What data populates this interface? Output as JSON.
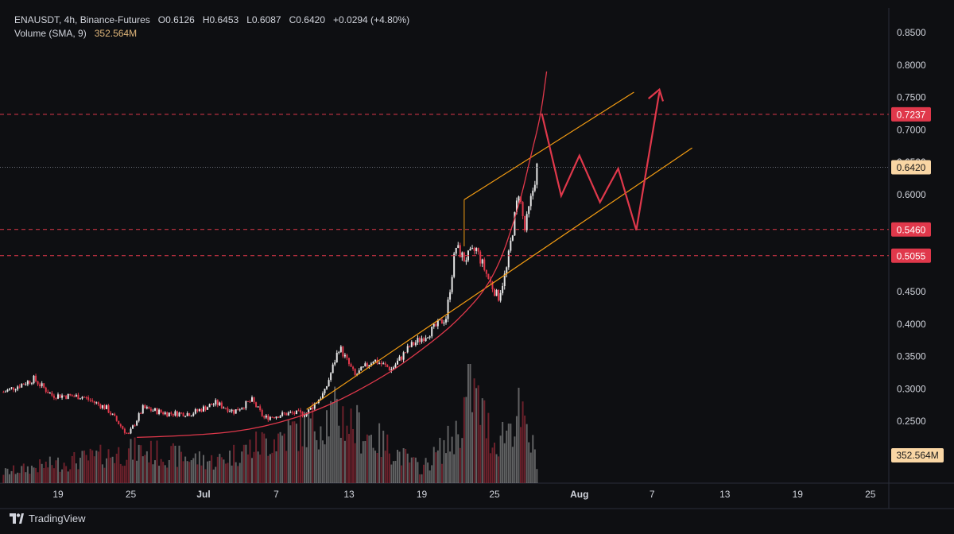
{
  "legend": {
    "title": "ENAUSDT, 4h, Binance-Futures",
    "o": "O0.6126",
    "h": "H0.6453",
    "l": "L0.6087",
    "c": "C0.6420",
    "change": "+0.0294 (+4.80%)",
    "volume_label": "Volume (SMA, 9)",
    "volume_value": "352.564M"
  },
  "footer": {
    "brand": "TradingView"
  },
  "colors": {
    "background": "#0e0f12",
    "up": "#e6e6e6",
    "down": "#e0384b",
    "channel": "#f39c12",
    "curve": "#e0384b",
    "level": "#e0384b",
    "price_label": "#f9d6a4"
  },
  "chart_data": {
    "type": "candlestick",
    "symbol": "ENAUSDT",
    "timeframe": "4h",
    "exchange": "Binance-Futures",
    "y_range": [
      0.215,
      0.875
    ],
    "y_ticks": [
      "0.8500",
      "0.8000",
      "0.7500",
      "0.7000",
      "0.6500",
      "0.6000",
      "0.5500",
      "0.5000",
      "0.4500",
      "0.4000",
      "0.3500",
      "0.3000",
      "0.2500"
    ],
    "x_ticks": [
      {
        "label": "19",
        "day": -12
      },
      {
        "label": "25",
        "day": -6
      },
      {
        "label": "Jul",
        "day": 0
      },
      {
        "label": "7",
        "day": 6
      },
      {
        "label": "13",
        "day": 12
      },
      {
        "label": "19",
        "day": 18
      },
      {
        "label": "25",
        "day": 24
      },
      {
        "label": "Aug",
        "day": 31
      },
      {
        "label": "7",
        "day": 37
      },
      {
        "label": "13",
        "day": 43
      },
      {
        "label": "19",
        "day": 49
      },
      {
        "label": "25",
        "day": 55
      }
    ],
    "price_anchors": [
      [
        -16.5,
        0.295
      ],
      [
        -14,
        0.315
      ],
      [
        -12.5,
        0.29
      ],
      [
        -10,
        0.288
      ],
      [
        -8,
        0.27
      ],
      [
        -6.2,
        0.228
      ],
      [
        -5,
        0.27
      ],
      [
        -3,
        0.262
      ],
      [
        -1,
        0.262
      ],
      [
        1,
        0.278
      ],
      [
        2.5,
        0.265
      ],
      [
        4,
        0.282
      ],
      [
        5,
        0.255
      ],
      [
        7,
        0.262
      ],
      [
        8.5,
        0.262
      ],
      [
        10,
        0.295
      ],
      [
        11.2,
        0.365
      ],
      [
        12.5,
        0.32
      ],
      [
        14,
        0.345
      ],
      [
        15.5,
        0.33
      ],
      [
        17,
        0.365
      ],
      [
        18.5,
        0.385
      ],
      [
        20,
        0.41
      ],
      [
        20.8,
        0.52
      ],
      [
        21.5,
        0.5
      ],
      [
        22.5,
        0.515
      ],
      [
        23.5,
        0.47
      ],
      [
        24.3,
        0.44
      ],
      [
        25,
        0.485
      ],
      [
        26,
        0.605
      ],
      [
        26.5,
        0.545
      ],
      [
        27.2,
        0.61
      ],
      [
        27.5,
        0.642
      ]
    ],
    "volume_anchors": [
      [
        -16.5,
        30
      ],
      [
        -5.5,
        90
      ],
      [
        1,
        60
      ],
      [
        11,
        190
      ],
      [
        18,
        40
      ],
      [
        21,
        140
      ],
      [
        22,
        270
      ],
      [
        24,
        110
      ],
      [
        26,
        190
      ],
      [
        27.5,
        70
      ]
    ],
    "current_price": "0.6420",
    "current_volume": "352.564M",
    "levels": [
      {
        "label": "0.7237",
        "value": 0.7237
      },
      {
        "label": "0.5460",
        "value": 0.546
      },
      {
        "label": "0.5055",
        "value": 0.5055
      }
    ],
    "channel_lines": [
      {
        "points": [
          [
            8.5,
            0.268
          ],
          [
            40.3,
            0.672
          ]
        ]
      },
      {
        "points": [
          [
            21.5,
            0.592
          ],
          [
            35.5,
            0.758
          ]
        ]
      }
    ],
    "support_curve": [
      [
        -5.5,
        0.225
      ],
      [
        0,
        0.228
      ],
      [
        5,
        0.24
      ],
      [
        10,
        0.27
      ],
      [
        15,
        0.32
      ],
      [
        18,
        0.36
      ],
      [
        21,
        0.405
      ],
      [
        24,
        0.47
      ],
      [
        26,
        0.58
      ],
      [
        27,
        0.66
      ],
      [
        27.8,
        0.72
      ],
      [
        28.3,
        0.79
      ]
    ],
    "projection_path": [
      [
        27.9,
        0.725
      ],
      [
        29.5,
        0.598
      ],
      [
        31,
        0.66
      ],
      [
        32.7,
        0.588
      ],
      [
        34.2,
        0.64
      ],
      [
        35.7,
        0.545
      ],
      [
        37.6,
        0.758
      ]
    ],
    "projection_arrowhead": [
      [
        36.7,
        0.748
      ],
      [
        37.6,
        0.762
      ],
      [
        37.9,
        0.744
      ]
    ]
  }
}
